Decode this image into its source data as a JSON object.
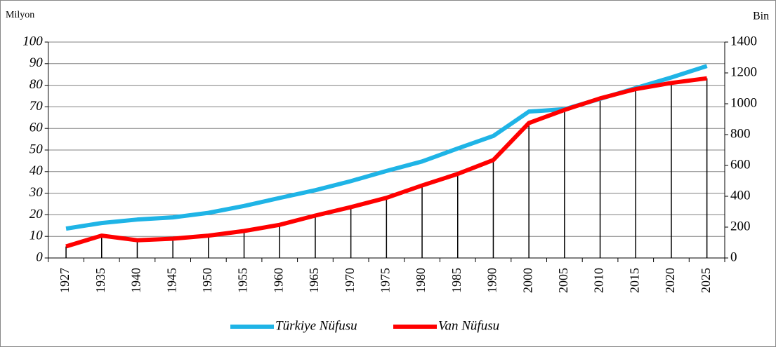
{
  "chart_data": {
    "type": "line",
    "y_label": "Milyon",
    "y2_label": "Bin",
    "categories": [
      "1927",
      "1935",
      "1940",
      "1945",
      "1950",
      "1955",
      "1960",
      "1965",
      "1970",
      "1975",
      "1980",
      "1985",
      "1990",
      "2000",
      "2005",
      "2010",
      "2015",
      "2020",
      "2025"
    ],
    "series": [
      {
        "name": "Türkiye Nüfusu",
        "color": "#1fb4e6",
        "values": [
          13.6,
          16.2,
          17.8,
          18.8,
          20.9,
          24.1,
          27.8,
          31.4,
          35.6,
          40.3,
          44.7,
          50.7,
          56.5,
          67.8,
          68.9,
          73.7,
          78.7,
          83.6,
          88.9
        ]
      },
      {
        "name": "Van Nüfusu",
        "color": "#ff0000",
        "axis": "y2",
        "values": [
          75,
          145,
          115,
          125,
          145,
          175,
          215,
          275,
          330,
          390,
          470,
          545,
          635,
          875,
          960,
          1035,
          1095,
          1135,
          1165
        ]
      }
    ],
    "ylim": [
      0,
      100
    ],
    "yticks": [
      0,
      10,
      20,
      30,
      40,
      50,
      60,
      70,
      80,
      90,
      100
    ],
    "y2lim": [
      0,
      1400
    ],
    "y2ticks": [
      0,
      200,
      400,
      600,
      800,
      1000,
      1200,
      1400
    ],
    "grid": true,
    "drop_lines": true,
    "legend": "bottom"
  }
}
